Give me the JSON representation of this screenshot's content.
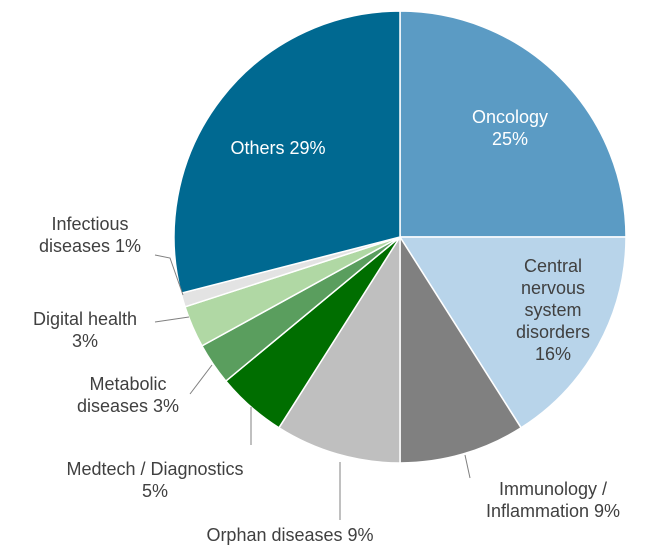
{
  "chart_data": {
    "type": "pie",
    "categories": [
      "Oncology",
      "Central nervous system disorders",
      "Immunology / Inflammation",
      "Orphan diseases",
      "Medtech / Diagnostics",
      "Metabolic diseases",
      "Digital health",
      "Infectious diseases",
      "Others"
    ],
    "values": [
      25,
      16,
      9,
      9,
      5,
      3,
      3,
      1,
      29
    ],
    "value_labels": [
      "25%",
      "16%",
      "9%",
      "9%",
      "5%",
      "3%",
      "3%",
      "1%",
      "29%"
    ],
    "colors": [
      "#5b9bc4",
      "#b8d4ea",
      "#808080",
      "#bfbfbf",
      "#006e00",
      "#5a9e5e",
      "#b0d8a4",
      "#e3e3e3",
      "#006991"
    ]
  }
}
